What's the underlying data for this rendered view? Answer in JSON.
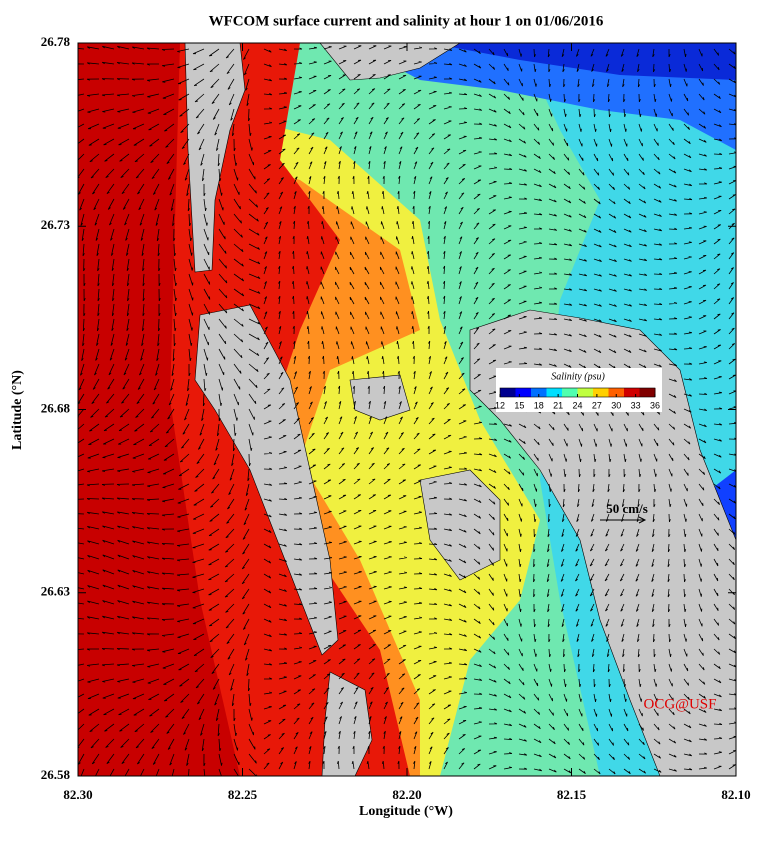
{
  "chart_data": {
    "type": "map",
    "title": "WFCOM surface current and salinity at hour 1 on 01/06/2016",
    "xlabel": "Longitude (°W)",
    "ylabel": "Latitude (°N)",
    "xlim": [
      82.3,
      82.1
    ],
    "xticks": [
      {
        "value": 82.3,
        "label": "82.30"
      },
      {
        "value": 82.25,
        "label": "82.25"
      },
      {
        "value": 82.2,
        "label": "82.20"
      },
      {
        "value": 82.15,
        "label": "82.15"
      },
      {
        "value": 82.1,
        "label": "82.10"
      }
    ],
    "ylim": [
      26.58,
      26.78
    ],
    "yticks": [
      26.58,
      26.63,
      26.68,
      26.73,
      26.78
    ],
    "colorbar": {
      "title": "Salinity (psu)",
      "clim": [
        12,
        36
      ],
      "ticks": [
        12,
        15,
        18,
        21,
        24,
        27,
        30,
        33,
        36
      ],
      "colormap": [
        "#00008f",
        "#0000ff",
        "#0070ff",
        "#00dfff",
        "#50ffaf",
        "#c0ff40",
        "#ffd000",
        "#ff6000",
        "#d00000",
        "#800000"
      ]
    },
    "scale_label": "50 cm/s",
    "credit": "OCG@USF"
  }
}
